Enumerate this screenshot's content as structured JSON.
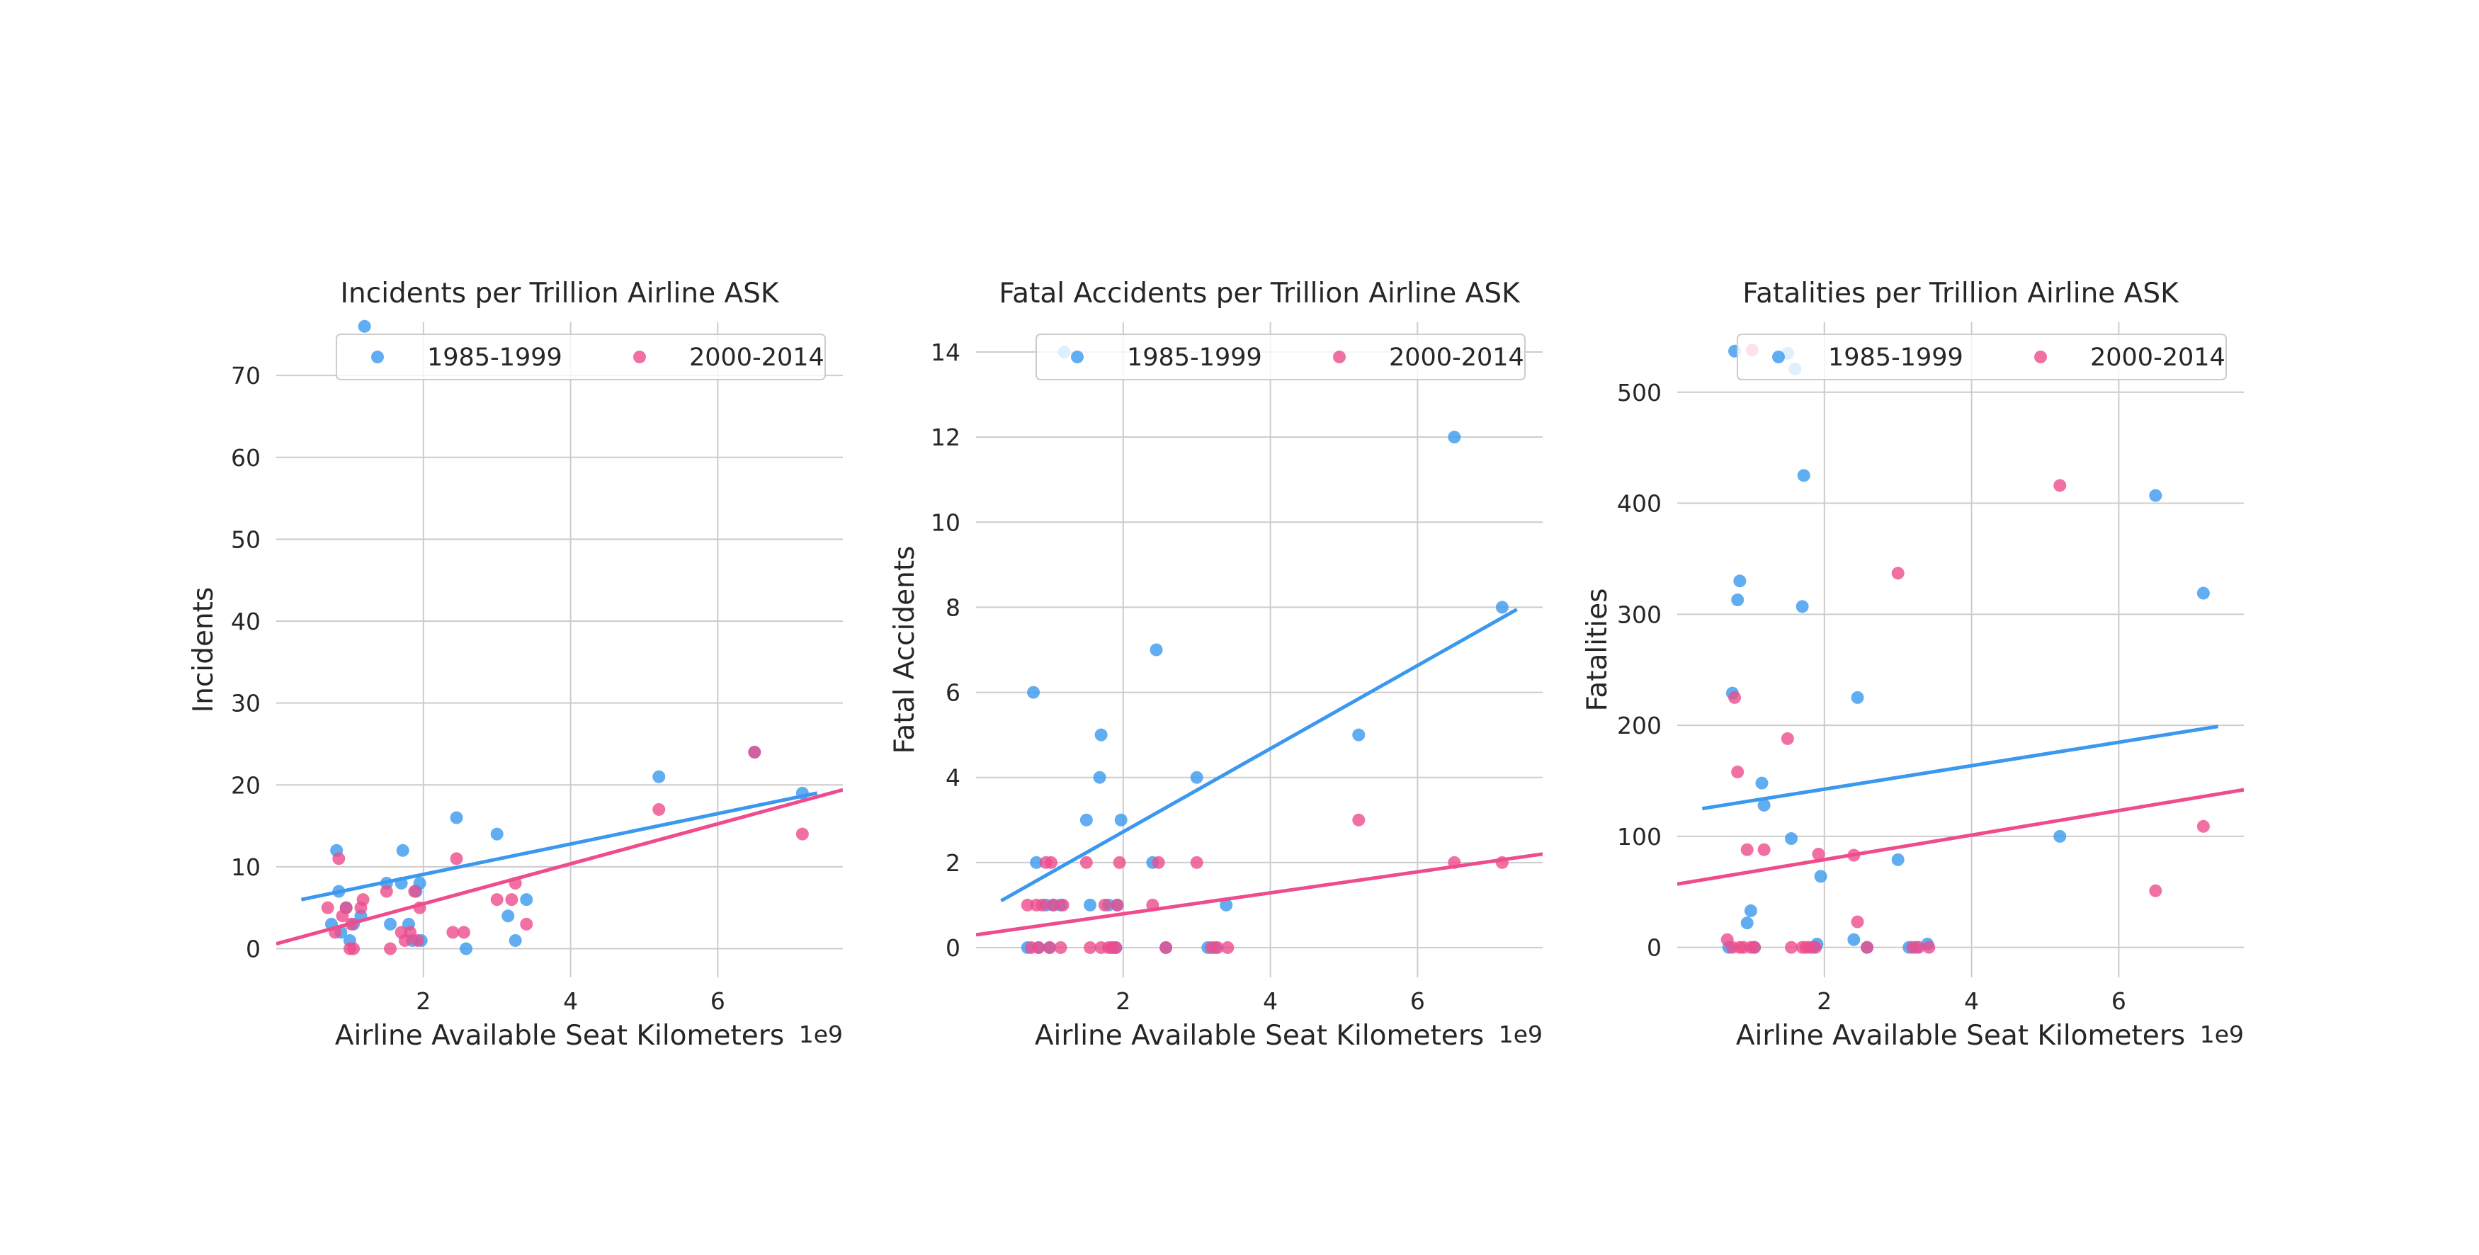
{
  "colors": {
    "series_1": "#3a98ee",
    "series_2": "#ee4c8d"
  },
  "chart_data": [
    {
      "type": "scatter",
      "title": "Incidents per Trillion Airline ASK",
      "xlabel": "Airline Available Seat Kilometers",
      "ylabel": "Incidents",
      "x_offset_label": "1e9",
      "xlim": [
        0,
        7.7
      ],
      "ylim": [
        -3.5,
        76.5
      ],
      "xticks": [
        2,
        4,
        6
      ],
      "yticks": [
        0,
        10,
        20,
        30,
        40,
        50,
        60,
        70
      ],
      "legend_position": "upper center",
      "grid": true,
      "series": [
        {
          "name": "1985-1999",
          "color": "#3a98ee",
          "regression": {
            "x": [
              0.34,
              7.35
            ],
            "y": [
              6.0,
              19.0
            ]
          },
          "points": [
            [
              0.75,
              3
            ],
            [
              0.82,
              12
            ],
            [
              0.85,
              7
            ],
            [
              0.88,
              2
            ],
            [
              0.95,
              5
            ],
            [
              1.0,
              1
            ],
            [
              1.05,
              3
            ],
            [
              1.15,
              4
            ],
            [
              1.2,
              76
            ],
            [
              1.5,
              8
            ],
            [
              1.55,
              3
            ],
            [
              1.7,
              8
            ],
            [
              1.72,
              12
            ],
            [
              1.8,
              3
            ],
            [
              1.85,
              1
            ],
            [
              1.9,
              7
            ],
            [
              1.95,
              8
            ],
            [
              1.97,
              1
            ],
            [
              2.45,
              16
            ],
            [
              2.58,
              0
            ],
            [
              3.0,
              14
            ],
            [
              3.15,
              4
            ],
            [
              3.25,
              1
            ],
            [
              3.4,
              6
            ],
            [
              5.2,
              21
            ],
            [
              6.5,
              24
            ],
            [
              7.15,
              19
            ]
          ]
        },
        {
          "name": "2000-2014",
          "color": "#ee4c8d",
          "regression": {
            "x": [
              0.0,
              7.7
            ],
            "y": [
              0.6,
              19.4
            ]
          },
          "points": [
            [
              0.7,
              5
            ],
            [
              0.8,
              2
            ],
            [
              0.85,
              11
            ],
            [
              0.9,
              4
            ],
            [
              0.95,
              5
            ],
            [
              1.0,
              0
            ],
            [
              1.02,
              3
            ],
            [
              1.05,
              0
            ],
            [
              1.15,
              5
            ],
            [
              1.18,
              6
            ],
            [
              1.5,
              7
            ],
            [
              1.55,
              0
            ],
            [
              1.7,
              2
            ],
            [
              1.75,
              1
            ],
            [
              1.82,
              2
            ],
            [
              1.88,
              7
            ],
            [
              1.92,
              1
            ],
            [
              1.95,
              5
            ],
            [
              2.4,
              2
            ],
            [
              2.45,
              11
            ],
            [
              2.55,
              2
            ],
            [
              3.0,
              6
            ],
            [
              3.2,
              6
            ],
            [
              3.25,
              8
            ],
            [
              3.4,
              3
            ],
            [
              5.2,
              17
            ],
            [
              6.5,
              24
            ],
            [
              7.15,
              14
            ]
          ]
        }
      ]
    },
    {
      "type": "scatter",
      "title": "Fatal Accidents per Trillion Airline ASK",
      "xlabel": "Airline Available Seat Kilometers",
      "ylabel": "Fatal Accidents",
      "x_offset_label": "1e9",
      "xlim": [
        0,
        7.7
      ],
      "ylim": [
        -0.7,
        14.7
      ],
      "xticks": [
        2,
        4,
        6
      ],
      "yticks": [
        0,
        2,
        4,
        6,
        8,
        10,
        12,
        14
      ],
      "legend_position": "upper center",
      "grid": true,
      "series": [
        {
          "name": "1985-1999",
          "color": "#3a98ee",
          "regression": {
            "x": [
              0.34,
              7.35
            ],
            "y": [
              1.1,
              7.95
            ]
          },
          "points": [
            [
              0.7,
              0
            ],
            [
              0.78,
              6
            ],
            [
              0.82,
              2
            ],
            [
              0.85,
              0
            ],
            [
              0.95,
              1
            ],
            [
              1.0,
              0
            ],
            [
              1.05,
              1
            ],
            [
              1.15,
              1
            ],
            [
              1.2,
              14
            ],
            [
              1.5,
              3
            ],
            [
              1.55,
              1
            ],
            [
              1.7,
              5
            ],
            [
              1.68,
              4
            ],
            [
              1.8,
              1
            ],
            [
              1.85,
              0
            ],
            [
              1.9,
              0
            ],
            [
              1.92,
              1
            ],
            [
              1.97,
              3
            ],
            [
              2.4,
              2
            ],
            [
              2.45,
              7
            ],
            [
              2.58,
              0
            ],
            [
              3.0,
              4
            ],
            [
              3.15,
              0
            ],
            [
              3.25,
              0
            ],
            [
              3.4,
              1
            ],
            [
              5.2,
              5
            ],
            [
              6.5,
              12
            ],
            [
              7.15,
              8
            ]
          ]
        },
        {
          "name": "2000-2014",
          "color": "#ee4c8d",
          "regression": {
            "x": [
              0.0,
              7.7
            ],
            "y": [
              0.3,
              2.2
            ]
          },
          "points": [
            [
              0.7,
              1
            ],
            [
              0.75,
              0
            ],
            [
              0.82,
              1
            ],
            [
              0.85,
              0
            ],
            [
              0.9,
              1
            ],
            [
              0.95,
              2
            ],
            [
              1.0,
              0
            ],
            [
              1.02,
              2
            ],
            [
              1.05,
              1
            ],
            [
              1.15,
              0
            ],
            [
              1.18,
              1
            ],
            [
              1.5,
              2
            ],
            [
              1.55,
              0
            ],
            [
              1.7,
              0
            ],
            [
              1.75,
              1
            ],
            [
              1.8,
              0
            ],
            [
              1.85,
              0
            ],
            [
              1.9,
              0
            ],
            [
              1.92,
              1
            ],
            [
              1.95,
              2
            ],
            [
              2.4,
              1
            ],
            [
              2.48,
              2
            ],
            [
              2.58,
              0
            ],
            [
              3.0,
              2
            ],
            [
              3.2,
              0
            ],
            [
              3.28,
              0
            ],
            [
              3.42,
              0
            ],
            [
              5.2,
              3
            ],
            [
              6.5,
              2
            ],
            [
              7.15,
              2
            ]
          ]
        }
      ]
    },
    {
      "type": "scatter",
      "title": "Fatalities per Trillion Airline ASK",
      "xlabel": "Airline Available Seat Kilometers",
      "ylabel": "Fatalities",
      "x_offset_label": "1e9",
      "xlim": [
        0,
        7.7
      ],
      "ylim": [
        -27,
        563
      ],
      "xticks": [
        2,
        4,
        6
      ],
      "yticks": [
        0,
        100,
        200,
        300,
        400,
        500
      ],
      "legend_position": "upper center",
      "grid": true,
      "series": [
        {
          "name": "1985-1999",
          "color": "#3a98ee",
          "regression": {
            "x": [
              0.34,
              7.35
            ],
            "y": [
              125,
              199
            ]
          },
          "points": [
            [
              0.7,
              0
            ],
            [
              0.75,
              229
            ],
            [
              0.78,
              537
            ],
            [
              0.82,
              313
            ],
            [
              0.85,
              330
            ],
            [
              0.95,
              22
            ],
            [
              1.0,
              33
            ],
            [
              1.05,
              0
            ],
            [
              1.15,
              148
            ],
            [
              1.18,
              128
            ],
            [
              1.5,
              535
            ],
            [
              1.55,
              98
            ],
            [
              1.6,
              521
            ],
            [
              1.72,
              425
            ],
            [
              1.7,
              307
            ],
            [
              1.85,
              0
            ],
            [
              1.9,
              3
            ],
            [
              1.95,
              64
            ],
            [
              2.4,
              7
            ],
            [
              2.45,
              225
            ],
            [
              2.58,
              0
            ],
            [
              3.0,
              79
            ],
            [
              3.15,
              0
            ],
            [
              3.25,
              0
            ],
            [
              3.4,
              3
            ],
            [
              5.2,
              100
            ],
            [
              6.5,
              407
            ],
            [
              7.15,
              319
            ]
          ]
        },
        {
          "name": "2000-2014",
          "color": "#ee4c8d",
          "regression": {
            "x": [
              0.0,
              7.7
            ],
            "y": [
              57,
              142
            ]
          },
          "points": [
            [
              0.68,
              7
            ],
            [
              0.75,
              0
            ],
            [
              0.78,
              225
            ],
            [
              0.82,
              158
            ],
            [
              0.85,
              0
            ],
            [
              0.9,
              0
            ],
            [
              0.95,
              88
            ],
            [
              1.0,
              0
            ],
            [
              1.02,
              538
            ],
            [
              1.05,
              0
            ],
            [
              1.18,
              88
            ],
            [
              1.5,
              188
            ],
            [
              1.55,
              0
            ],
            [
              1.7,
              0
            ],
            [
              1.75,
              0
            ],
            [
              1.8,
              0
            ],
            [
              1.88,
              0
            ],
            [
              1.92,
              84
            ],
            [
              2.4,
              83
            ],
            [
              2.45,
              23
            ],
            [
              2.58,
              0
            ],
            [
              3.0,
              337
            ],
            [
              3.2,
              0
            ],
            [
              3.28,
              0
            ],
            [
              3.42,
              0
            ],
            [
              5.2,
              416
            ],
            [
              6.5,
              51
            ],
            [
              7.15,
              109
            ]
          ]
        }
      ]
    }
  ]
}
